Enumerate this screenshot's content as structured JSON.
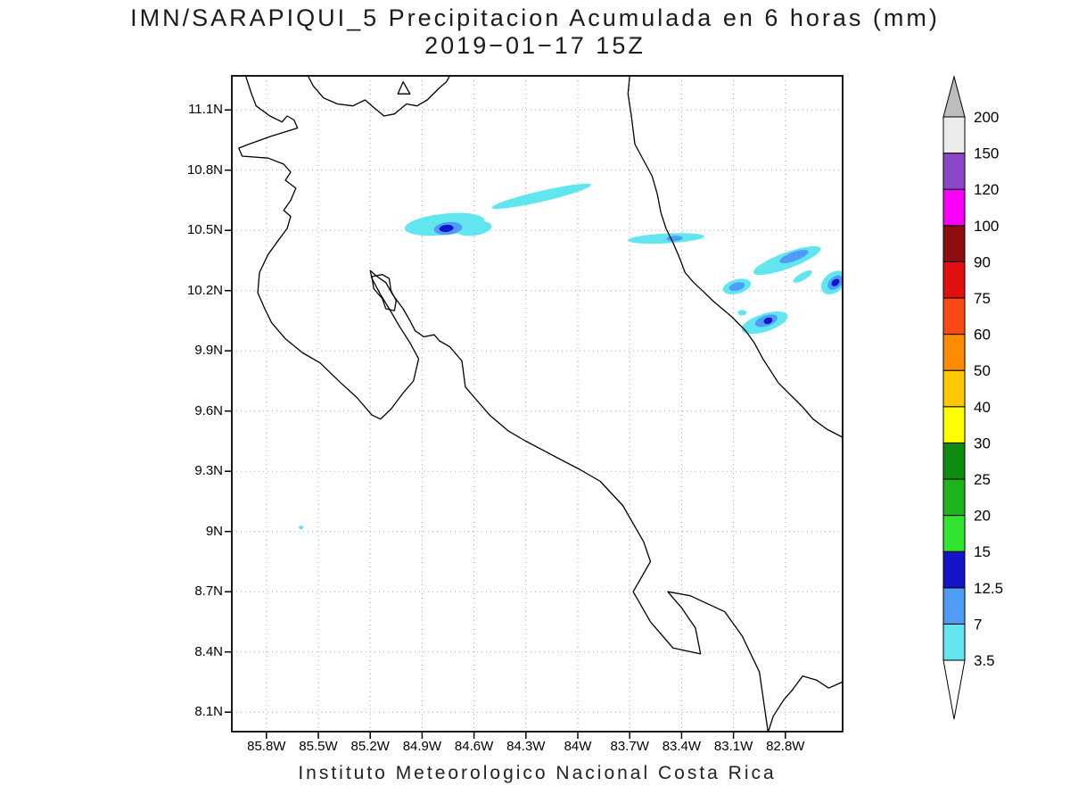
{
  "title": {
    "line1": "IMN/SARAPIQUI_5 Precipitacion Acumulada en 6 horas (mm)",
    "line2": "2019−01−17 15Z"
  },
  "caption": "Instituto Meteorologico Nacional Costa Rica",
  "chart_data": {
    "type": "heatmap",
    "title": "IMN/SARAPIQUI_5 Precipitacion Acumulada en 6 horas (mm)",
    "subtitle": "2019-01-17 15Z",
    "units": "mm",
    "xlabel": "",
    "ylabel": "",
    "grid": true,
    "x_ticks": [
      {
        "label": "85.8W",
        "lon": -85.8
      },
      {
        "label": "85.5W",
        "lon": -85.5
      },
      {
        "label": "85.2W",
        "lon": -85.2
      },
      {
        "label": "84.9W",
        "lon": -84.9
      },
      {
        "label": "84.6W",
        "lon": -84.6
      },
      {
        "label": "84.3W",
        "lon": -84.3
      },
      {
        "label": "84W",
        "lon": -84.0
      },
      {
        "label": "83.7W",
        "lon": -83.7
      },
      {
        "label": "83.4W",
        "lon": -83.4
      },
      {
        "label": "83.1W",
        "lon": -83.1
      },
      {
        "label": "82.8W",
        "lon": -82.8
      }
    ],
    "y_ticks": [
      {
        "label": "11.1N",
        "lat": 11.1
      },
      {
        "label": "10.8N",
        "lat": 10.8
      },
      {
        "label": "10.5N",
        "lat": 10.5
      },
      {
        "label": "10.2N",
        "lat": 10.2
      },
      {
        "label": "9.9N",
        "lat": 9.9
      },
      {
        "label": "9.6N",
        "lat": 9.6
      },
      {
        "label": "9.3N",
        "lat": 9.3
      },
      {
        "label": "9N",
        "lat": 9.0
      },
      {
        "label": "8.7N",
        "lat": 8.7
      },
      {
        "label": "8.4N",
        "lat": 8.4
      },
      {
        "label": "8.1N",
        "lat": 8.1
      }
    ],
    "colorbar": {
      "levels": [
        "3.5",
        "7",
        "12.5",
        "15",
        "20",
        "25",
        "30",
        "40",
        "50",
        "60",
        "75",
        "90",
        "100",
        "120",
        "150",
        "200"
      ],
      "levels_mm": [
        3.5,
        7,
        12.5,
        15,
        20,
        25,
        30,
        40,
        50,
        60,
        75,
        90,
        100,
        120,
        150,
        200
      ],
      "colors": [
        "#61e6f0",
        "#4f9cf7",
        "#1414c8",
        "#30e430",
        "#1eb41e",
        "#0f8c0f",
        "#ffff00",
        "#ffc800",
        "#ff8c00",
        "#fc4a14",
        "#e01010",
        "#8c0e0e",
        "#fa00fa",
        "#8c46c8",
        "#ececec"
      ],
      "arrow_top_color": "#bdbdbd",
      "arrow_bottom_color": "#ffffff"
    },
    "map": {
      "lon_range": [
        -86.0,
        -82.469
      ],
      "lat_range": [
        8.003,
        11.27
      ],
      "coastlines": [
        {
          "closed": false,
          "points": [
            [
              -85.92,
              11.27
            ],
            [
              -85.89,
              11.19
            ],
            [
              -85.86,
              11.12
            ],
            [
              -85.78,
              11.07
            ],
            [
              -85.71,
              11.04
            ],
            [
              -85.68,
              11.07
            ],
            [
              -85.64,
              11.05
            ],
            [
              -85.62,
              11.01
            ],
            [
              -85.77,
              10.97
            ],
            [
              -85.9,
              10.93
            ],
            [
              -85.96,
              10.91
            ],
            [
              -85.94,
              10.87
            ],
            [
              -85.79,
              10.86
            ],
            [
              -85.7,
              10.83
            ],
            [
              -85.66,
              10.79
            ],
            [
              -85.69,
              10.75
            ],
            [
              -85.63,
              10.71
            ],
            [
              -85.66,
              10.65
            ],
            [
              -85.7,
              10.6
            ],
            [
              -85.66,
              10.57
            ],
            [
              -85.68,
              10.51
            ],
            [
              -85.74,
              10.44
            ],
            [
              -85.79,
              10.38
            ],
            [
              -85.84,
              10.29
            ],
            [
              -85.85,
              10.19
            ],
            [
              -85.81,
              10.11
            ],
            [
              -85.77,
              10.04
            ],
            [
              -85.69,
              9.96
            ],
            [
              -85.59,
              9.89
            ],
            [
              -85.49,
              9.84
            ],
            [
              -85.37,
              9.74
            ],
            [
              -85.28,
              9.67
            ],
            [
              -85.19,
              9.58
            ],
            [
              -85.14,
              9.56
            ],
            [
              -85.08,
              9.61
            ],
            [
              -85.01,
              9.69
            ],
            [
              -84.95,
              9.75
            ],
            [
              -84.92,
              9.86
            ],
            [
              -84.97,
              9.94
            ],
            [
              -85.03,
              10.02
            ],
            [
              -85.09,
              10.11
            ],
            [
              -85.14,
              10.18
            ],
            [
              -85.19,
              10.26
            ],
            [
              -85.2,
              10.3
            ],
            [
              -85.16,
              10.27
            ],
            [
              -85.11,
              10.24
            ],
            [
              -85.07,
              10.18
            ],
            [
              -85.01,
              10.11
            ],
            [
              -84.97,
              10.05
            ],
            [
              -84.94,
              10.0
            ],
            [
              -84.89,
              9.97
            ],
            [
              -84.83,
              9.98
            ],
            [
              -84.8,
              9.95
            ],
            [
              -84.74,
              9.92
            ],
            [
              -84.67,
              9.85
            ],
            [
              -84.65,
              9.72
            ],
            [
              -84.6,
              9.67
            ],
            [
              -84.51,
              9.58
            ],
            [
              -84.4,
              9.5
            ],
            [
              -84.3,
              9.45
            ],
            [
              -84.19,
              9.4
            ],
            [
              -84.08,
              9.35
            ],
            [
              -83.99,
              9.31
            ],
            [
              -83.87,
              9.25
            ],
            [
              -83.74,
              9.13
            ],
            [
              -83.62,
              8.95
            ],
            [
              -83.58,
              8.85
            ],
            [
              -83.68,
              8.7
            ],
            [
              -83.58,
              8.55
            ],
            [
              -83.45,
              8.42
            ],
            [
              -83.29,
              8.39
            ],
            [
              -83.32,
              8.52
            ],
            [
              -83.4,
              8.62
            ],
            [
              -83.48,
              8.7
            ],
            [
              -83.35,
              8.68
            ],
            [
              -83.15,
              8.6
            ],
            [
              -83.05,
              8.48
            ],
            [
              -82.95,
              8.3
            ],
            [
              -82.9,
              8.0
            ],
            [
              -82.87,
              8.08
            ],
            [
              -82.81,
              8.16
            ],
            [
              -82.76,
              8.21
            ],
            [
              -82.7,
              8.28
            ],
            [
              -82.62,
              8.26
            ],
            [
              -82.55,
              8.22
            ],
            [
              -82.47,
              8.25
            ]
          ]
        },
        {
          "closed": false,
          "points": [
            [
              -83.7,
              11.27
            ],
            [
              -83.71,
              11.18
            ],
            [
              -83.69,
              11.07
            ],
            [
              -83.67,
              10.93
            ],
            [
              -83.62,
              10.85
            ],
            [
              -83.57,
              10.77
            ],
            [
              -83.54,
              10.68
            ],
            [
              -83.52,
              10.59
            ],
            [
              -83.49,
              10.51
            ],
            [
              -83.45,
              10.44
            ],
            [
              -83.41,
              10.36
            ],
            [
              -83.38,
              10.29
            ],
            [
              -83.33,
              10.24
            ],
            [
              -83.28,
              10.2
            ],
            [
              -83.22,
              10.15
            ],
            [
              -83.11,
              10.07
            ],
            [
              -83.03,
              10.0
            ],
            [
              -82.98,
              9.94
            ],
            [
              -82.93,
              9.86
            ],
            [
              -82.84,
              9.74
            ],
            [
              -82.77,
              9.68
            ],
            [
              -82.7,
              9.62
            ],
            [
              -82.64,
              9.56
            ],
            [
              -82.56,
              9.51
            ],
            [
              -82.47,
              9.47
            ]
          ]
        },
        {
          "closed": false,
          "points": [
            [
              -85.56,
              11.27
            ],
            [
              -85.53,
              11.22
            ],
            [
              -85.47,
              11.16
            ],
            [
              -85.39,
              11.13
            ],
            [
              -85.3,
              11.12
            ],
            [
              -85.23,
              11.15
            ],
            [
              -85.19,
              11.12
            ],
            [
              -85.12,
              11.07
            ],
            [
              -85.06,
              11.08
            ],
            [
              -84.99,
              11.13
            ],
            [
              -84.93,
              11.12
            ],
            [
              -84.87,
              11.15
            ],
            [
              -84.8,
              11.21
            ],
            [
              -84.76,
              11.24
            ],
            [
              -84.74,
              11.27
            ]
          ]
        },
        {
          "closed": true,
          "points": [
            [
              -85.04,
              11.18
            ],
            [
              -85.01,
              11.24
            ],
            [
              -84.97,
              11.18
            ]
          ]
        },
        {
          "closed": true,
          "points": [
            [
              -85.19,
              10.27
            ],
            [
              -85.13,
              10.28
            ],
            [
              -85.09,
              10.26
            ],
            [
              -85.08,
              10.2
            ],
            [
              -85.05,
              10.15
            ],
            [
              -85.06,
              10.1
            ],
            [
              -85.11,
              10.11
            ],
            [
              -85.13,
              10.16
            ],
            [
              -85.18,
              10.21
            ]
          ]
        }
      ],
      "feature_note": "each feature: [lon, lat, rx_px, ry_px, rotation_deg, color_level_index]",
      "features": [
        [
          -84.21,
          10.67,
          57,
          6,
          -13,
          0
        ],
        [
          -84.77,
          10.53,
          45,
          12,
          -6,
          0
        ],
        [
          -84.6,
          10.51,
          20,
          8,
          -8,
          0
        ],
        [
          -84.75,
          10.51,
          16,
          7,
          -6,
          1
        ],
        [
          -84.76,
          10.51,
          8,
          4,
          -6,
          2
        ],
        [
          -83.49,
          10.46,
          43,
          5.5,
          -3,
          0
        ],
        [
          -83.44,
          10.46,
          9,
          3,
          -3,
          1
        ],
        [
          -82.79,
          10.35,
          40,
          9,
          -20,
          0
        ],
        [
          -82.75,
          10.37,
          17,
          5,
          -20,
          1
        ],
        [
          -82.7,
          10.27,
          12,
          4,
          -30,
          0
        ],
        [
          -83.08,
          10.22,
          16,
          8,
          -15,
          0
        ],
        [
          -83.08,
          10.22,
          9,
          4.5,
          -15,
          1
        ],
        [
          -82.92,
          10.04,
          27,
          10,
          -18,
          0
        ],
        [
          -82.91,
          10.05,
          13,
          6,
          -18,
          1
        ],
        [
          -82.9,
          10.05,
          5,
          3.5,
          -18,
          2
        ],
        [
          -82.52,
          10.24,
          16,
          11,
          -40,
          0
        ],
        [
          -82.51,
          10.24,
          10,
          6.5,
          -40,
          1
        ],
        [
          -82.51,
          10.24,
          5,
          3.5,
          -40,
          2
        ],
        [
          -83.05,
          10.09,
          5,
          3,
          0,
          0
        ],
        [
          -85.6,
          9.02,
          2.5,
          2,
          0,
          0
        ]
      ]
    }
  }
}
